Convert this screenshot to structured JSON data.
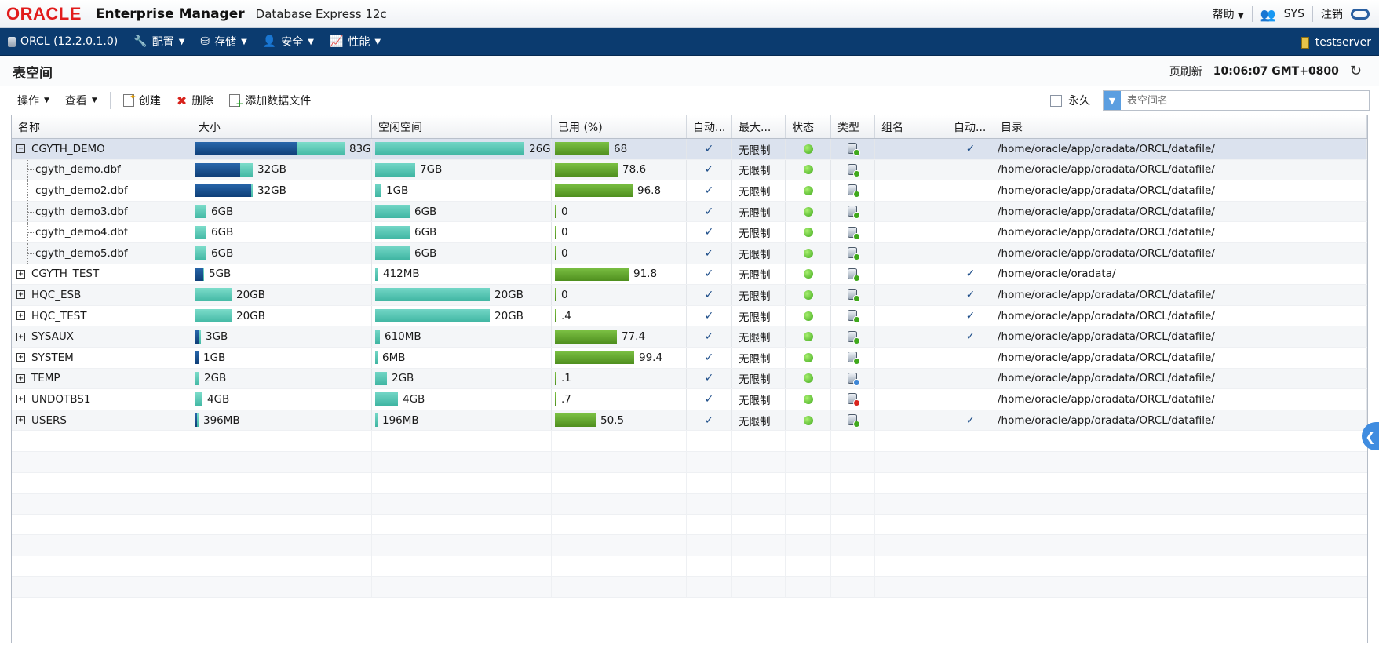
{
  "header": {
    "brand": "ORACLE",
    "product": "Enterprise Manager",
    "edition": "Database Express 12c",
    "help_label": "帮助",
    "user": "SYS",
    "logout_label": "注销"
  },
  "nav": {
    "instance": "ORCL (12.2.0.1.0)",
    "menus": [
      "配置",
      "存储",
      "安全",
      "性能"
    ],
    "host": "testserver"
  },
  "page": {
    "title": "表空间",
    "refresh_label": "页刷新",
    "refresh_time": "10:06:07 GMT+0800"
  },
  "toolbar": {
    "actions_label": "操作",
    "view_label": "查看",
    "create_label": "创建",
    "delete_label": "删除",
    "add_datafile_label": "添加数据文件",
    "permanent_label": "永久",
    "search_placeholder": "表空间名"
  },
  "columns": [
    "名称",
    "大小",
    "空闲空间",
    "已用 (%)",
    "自动...",
    "最大...",
    "状态",
    "类型",
    "组名",
    "自动...",
    "目录"
  ],
  "rows": [
    {
      "name": "CGYTH_DEMO",
      "level": 0,
      "expanded": true,
      "selected": true,
      "size": "83GB",
      "size_used_pct": 0.68,
      "free": "26GB",
      "free_pct": 1.0,
      "used": "68",
      "used_pct": 68,
      "autoext": true,
      "max": "无限制",
      "status": "online",
      "type": "permanent",
      "group": "",
      "auto2": true,
      "dir": "/home/oracle/app/oradata/ORCL/datafile/"
    },
    {
      "name": "cgyth_demo.dbf",
      "level": 1,
      "size": "32GB",
      "size_used_pct": 0.786,
      "free": "7GB",
      "free_pct": 0.27,
      "used": "78.6",
      "used_pct": 78.6,
      "autoext": true,
      "max": "无限制",
      "status": "online",
      "type": "permanent",
      "group": "",
      "auto2": false,
      "dir": "/home/oracle/app/oradata/ORCL/datafile/"
    },
    {
      "name": "cgyth_demo2.dbf",
      "level": 1,
      "size": "32GB",
      "size_used_pct": 0.968,
      "free": "1GB",
      "free_pct": 0.04,
      "used": "96.8",
      "used_pct": 96.8,
      "autoext": true,
      "max": "无限制",
      "status": "online",
      "type": "permanent",
      "group": "",
      "auto2": false,
      "dir": "/home/oracle/app/oradata/ORCL/datafile/"
    },
    {
      "name": "cgyth_demo3.dbf",
      "level": 1,
      "size": "6GB",
      "size_used_pct": 0.0,
      "free": "6GB",
      "free_pct": 0.23,
      "used": "0",
      "used_pct": 0,
      "autoext": true,
      "max": "无限制",
      "status": "online",
      "type": "permanent",
      "group": "",
      "auto2": false,
      "dir": "/home/oracle/app/oradata/ORCL/datafile/"
    },
    {
      "name": "cgyth_demo4.dbf",
      "level": 1,
      "size": "6GB",
      "size_used_pct": 0.0,
      "free": "6GB",
      "free_pct": 0.23,
      "used": "0",
      "used_pct": 0,
      "autoext": true,
      "max": "无限制",
      "status": "online",
      "type": "permanent",
      "group": "",
      "auto2": false,
      "dir": "/home/oracle/app/oradata/ORCL/datafile/"
    },
    {
      "name": "cgyth_demo5.dbf",
      "level": 1,
      "size": "6GB",
      "size_used_pct": 0.0,
      "free": "6GB",
      "free_pct": 0.23,
      "used": "0",
      "used_pct": 0,
      "autoext": true,
      "max": "无限制",
      "status": "online",
      "type": "permanent",
      "group": "",
      "auto2": false,
      "dir": "/home/oracle/app/oradata/ORCL/datafile/"
    },
    {
      "name": "CGYTH_TEST",
      "level": 0,
      "expanded": false,
      "size": "5GB",
      "size_used_pct": 0.918,
      "free": "412MB",
      "free_pct": 0.02,
      "used": "91.8",
      "used_pct": 91.8,
      "autoext": true,
      "max": "无限制",
      "status": "online",
      "type": "permanent",
      "group": "",
      "auto2": true,
      "dir": "/home/oracle/oradata/"
    },
    {
      "name": "HQC_ESB",
      "level": 0,
      "expanded": false,
      "size": "20GB",
      "size_used_pct": 0.0,
      "free": "20GB",
      "free_pct": 0.77,
      "used": "0",
      "used_pct": 0,
      "autoext": true,
      "max": "无限制",
      "status": "online",
      "type": "permanent",
      "group": "",
      "auto2": true,
      "dir": "/home/oracle/app/oradata/ORCL/datafile/"
    },
    {
      "name": "HQC_TEST",
      "level": 0,
      "expanded": false,
      "size": "20GB",
      "size_used_pct": 0.004,
      "free": "20GB",
      "free_pct": 0.77,
      "used": ".4",
      "used_pct": 0.4,
      "autoext": true,
      "max": "无限制",
      "status": "online",
      "type": "permanent",
      "group": "",
      "auto2": true,
      "dir": "/home/oracle/app/oradata/ORCL/datafile/"
    },
    {
      "name": "SYSAUX",
      "level": 0,
      "expanded": false,
      "size": "3GB",
      "size_used_pct": 0.774,
      "free": "610MB",
      "free_pct": 0.03,
      "used": "77.4",
      "used_pct": 77.4,
      "autoext": true,
      "max": "无限制",
      "status": "online",
      "type": "permanent",
      "group": "",
      "auto2": true,
      "dir": "/home/oracle/app/oradata/ORCL/datafile/"
    },
    {
      "name": "SYSTEM",
      "level": 0,
      "expanded": false,
      "size": "1GB",
      "size_used_pct": 0.994,
      "free": "6MB",
      "free_pct": 0.005,
      "used": "99.4",
      "used_pct": 99.4,
      "autoext": true,
      "max": "无限制",
      "status": "online",
      "type": "permanent",
      "group": "",
      "auto2": false,
      "dir": "/home/oracle/app/oradata/ORCL/datafile/"
    },
    {
      "name": "TEMP",
      "level": 0,
      "expanded": false,
      "size": "2GB",
      "size_used_pct": 0.001,
      "free": "2GB",
      "free_pct": 0.08,
      "used": ".1",
      "used_pct": 0.1,
      "autoext": true,
      "max": "无限制",
      "status": "online",
      "type": "temporary",
      "group": "",
      "auto2": false,
      "dir": "/home/oracle/app/oradata/ORCL/datafile/"
    },
    {
      "name": "UNDOTBS1",
      "level": 0,
      "expanded": false,
      "size": "4GB",
      "size_used_pct": 0.007,
      "free": "4GB",
      "free_pct": 0.15,
      "used": ".7",
      "used_pct": 0.7,
      "autoext": true,
      "max": "无限制",
      "status": "online",
      "type": "undo",
      "group": "",
      "auto2": false,
      "dir": "/home/oracle/app/oradata/ORCL/datafile/"
    },
    {
      "name": "USERS",
      "level": 0,
      "expanded": false,
      "size": "396MB",
      "size_used_pct": 0.505,
      "free": "196MB",
      "free_pct": 0.008,
      "used": "50.5",
      "used_pct": 50.5,
      "autoext": true,
      "max": "无限制",
      "status": "online",
      "type": "permanent",
      "group": "",
      "auto2": true,
      "dir": "/home/oracle/app/oradata/ORCL/datafile/"
    }
  ],
  "colors": {
    "nav_bg": "#0b3b6f",
    "size_bar": "#1c5a9c",
    "free_bar": "#4fc2ae",
    "used_bar": "#5fa22a",
    "status_ok": "#4cb82a"
  }
}
